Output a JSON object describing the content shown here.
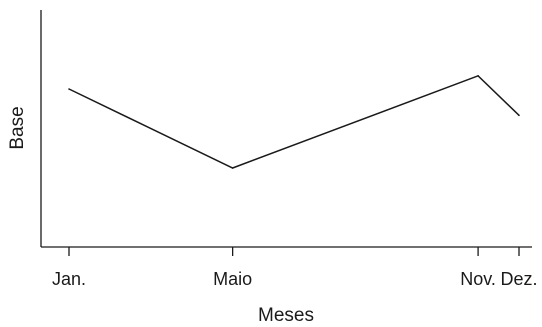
{
  "chart_data": {
    "type": "line",
    "title": "",
    "xlabel": "Meses",
    "ylabel": "Base",
    "categories": [
      "Jan.",
      "Maio",
      "Nov.",
      "Dez."
    ],
    "x": [
      1,
      5,
      11,
      12
    ],
    "xlim": [
      1,
      12
    ],
    "values": [
      60,
      30,
      65,
      50
    ],
    "ylim": [
      0,
      90
    ],
    "grid": false,
    "legend": "none"
  }
}
